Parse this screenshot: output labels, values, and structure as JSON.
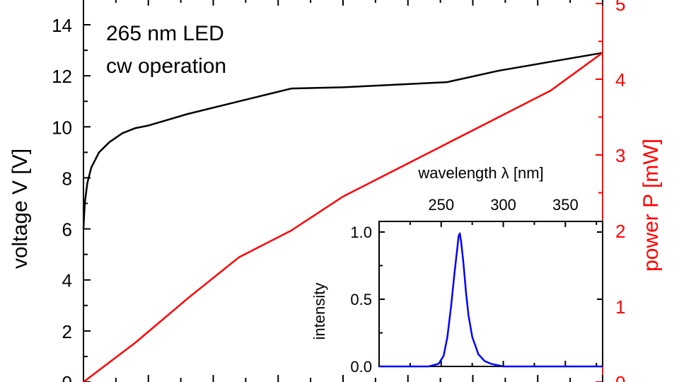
{
  "chart_data": [
    {
      "type": "line",
      "title": "",
      "annotations": [
        "265 nm LED",
        "cw operation"
      ],
      "xlabel": "",
      "xlim": [
        0,
        200
      ],
      "ylabel_left": "voltage V [V]",
      "ylim_left": [
        0,
        15
      ],
      "yticks_left": [
        "0",
        "2",
        "4",
        "6",
        "8",
        "10",
        "12",
        "14"
      ],
      "ylabel_right": "power P [mW]",
      "ylim_right": [
        0,
        5
      ],
      "yticks_right": [
        "0",
        "1",
        "2",
        "3",
        "4",
        "5"
      ],
      "series": [
        {
          "name": "voltage V",
          "axis": "left",
          "color": "#000000",
          "x": [
            0,
            0.5,
            1.5,
            3,
            6,
            10,
            15,
            20,
            25,
            40,
            60,
            80,
            100,
            140,
            160,
            200
          ],
          "y": [
            6.0,
            7.0,
            7.8,
            8.4,
            9.0,
            9.4,
            9.75,
            9.95,
            10.05,
            10.5,
            11.0,
            11.5,
            11.55,
            11.75,
            12.2,
            12.9
          ]
        },
        {
          "name": "power P",
          "axis": "right",
          "color": "#ff0000",
          "x": [
            0,
            20,
            40,
            60,
            80,
            100,
            140,
            160,
            180,
            200
          ],
          "y": [
            0.0,
            0.52,
            1.1,
            1.65,
            2.0,
            2.45,
            3.15,
            3.5,
            3.85,
            4.35
          ]
        }
      ],
      "colors": {
        "voltage": "#000000",
        "power": "#ff0000"
      }
    },
    {
      "type": "line",
      "title": "",
      "name": "inset spectrum",
      "xlabel": "wavelength λ [nm]",
      "xlim": [
        200,
        380
      ],
      "xticks": [
        "250",
        "300",
        "350"
      ],
      "ylabel": "intensity",
      "ylim": [
        0,
        1.05
      ],
      "yticks": [
        "0.0",
        "0.5",
        "1.0"
      ],
      "series": [
        {
          "name": "intensity",
          "color": "#0000ff",
          "x": [
            200,
            240,
            248,
            252,
            255,
            258,
            261,
            263,
            264,
            265,
            266,
            267,
            268,
            270,
            272,
            275,
            280,
            285,
            290,
            300,
            320,
            380
          ],
          "y": [
            0.0,
            0.0,
            0.02,
            0.08,
            0.22,
            0.45,
            0.72,
            0.88,
            0.97,
            0.99,
            0.93,
            0.85,
            0.76,
            0.55,
            0.38,
            0.22,
            0.09,
            0.04,
            0.02,
            0.0,
            0.0,
            0.0
          ]
        }
      ]
    }
  ]
}
